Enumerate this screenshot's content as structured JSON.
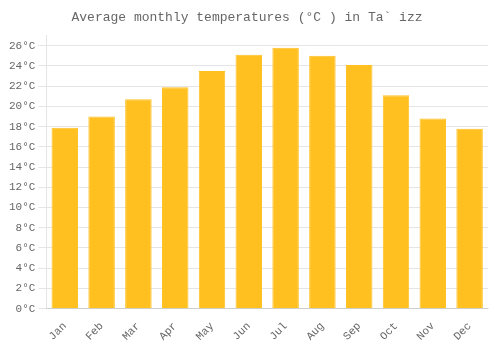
{
  "chart_data": {
    "type": "bar",
    "title": "Average monthly temperatures (°C ) in Ta` izz",
    "categories": [
      "Jan",
      "Feb",
      "Mar",
      "Apr",
      "May",
      "Jun",
      "Jul",
      "Aug",
      "Sep",
      "Oct",
      "Nov",
      "Dec"
    ],
    "values": [
      17.9,
      19.0,
      20.7,
      21.9,
      23.5,
      25.1,
      25.8,
      25.0,
      24.1,
      21.1,
      18.8,
      17.8
    ],
    "color": "#FFC020",
    "ylim": [
      0,
      27
    ],
    "yticks": [
      {
        "value": 0,
        "label": "0°C"
      },
      {
        "value": 2,
        "label": "2°C"
      },
      {
        "value": 4,
        "label": "4°C"
      },
      {
        "value": 6,
        "label": "6°C"
      },
      {
        "value": 8,
        "label": "8°C"
      },
      {
        "value": 10,
        "label": "10°C"
      },
      {
        "value": 12,
        "label": "12°C"
      },
      {
        "value": 14,
        "label": "14°C"
      },
      {
        "value": 16,
        "label": "16°C"
      },
      {
        "value": 18,
        "label": "18°C"
      },
      {
        "value": 20,
        "label": "20°C"
      },
      {
        "value": 22,
        "label": "22°C"
      },
      {
        "value": 24,
        "label": "24°C"
      },
      {
        "value": 26,
        "label": "26°C"
      }
    ],
    "grid": true
  }
}
